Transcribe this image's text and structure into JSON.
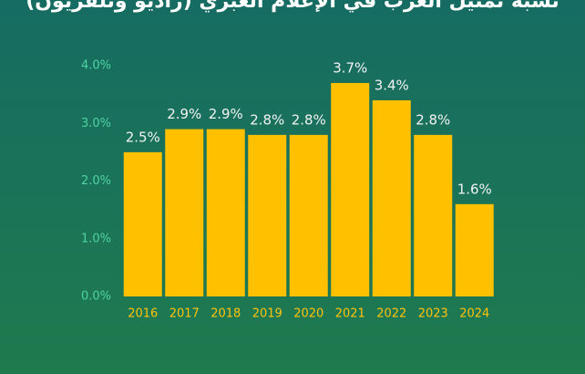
{
  "chart_data": {
    "type": "bar",
    "title": "نسبة تمثيل العرب في الإعلام العبري (راديو وتلفزيون)",
    "categories": [
      "2016",
      "2017",
      "2018",
      "2019",
      "2020",
      "2021",
      "2022",
      "2023",
      "2024"
    ],
    "values": [
      2.5,
      2.9,
      2.9,
      2.8,
      2.8,
      3.7,
      3.4,
      2.8,
      1.6
    ],
    "value_labels": [
      "2.5%",
      "2.9%",
      "2.9%",
      "2.8%",
      "2.8%",
      "3.7%",
      "3.4%",
      "2.8%",
      "1.6%"
    ],
    "color": "#ffc000",
    "ylim": [
      0,
      4
    ],
    "yticks": [
      {
        "value": 0,
        "label": "0.0%"
      },
      {
        "value": 1,
        "label": "1.0%"
      },
      {
        "value": 2,
        "label": "2.0%"
      },
      {
        "value": 3,
        "label": "3.0%"
      },
      {
        "value": 4,
        "label": "4.0%"
      }
    ],
    "grid": false
  }
}
